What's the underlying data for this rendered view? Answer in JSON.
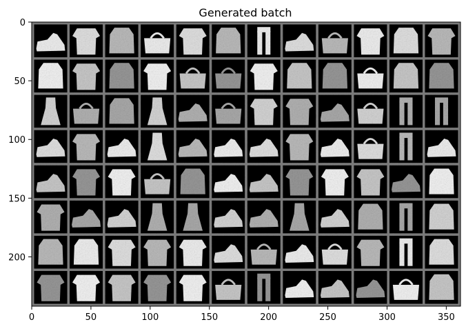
{
  "chart_data": {
    "type": "image-grid",
    "title": "Generated batch",
    "xlabel": "",
    "ylabel": "",
    "grid": false,
    "colormap": "grayscale",
    "xlim": [
      0,
      362
    ],
    "ylim": [
      242,
      0
    ],
    "rows": 8,
    "cols": 12,
    "cell_size": 28,
    "padding": 2,
    "xticks": [
      0,
      50,
      100,
      150,
      200,
      250,
      300,
      350
    ],
    "yticks": [
      0,
      50,
      100,
      150,
      200
    ],
    "tiles": [
      [
        "shoe",
        "shirt",
        "coat",
        "bag",
        "shirt",
        "coat",
        "trouser",
        "shoe",
        "bag",
        "shirt",
        "coat",
        "shirt"
      ],
      [
        "coat",
        "shirt",
        "coat",
        "shirt",
        "bag",
        "bag",
        "shirt",
        "coat",
        "coat",
        "bag",
        "coat",
        "coat"
      ],
      [
        "dress",
        "bag",
        "coat",
        "dress",
        "shoe",
        "bag",
        "shirt",
        "shirt",
        "shoe",
        "bag",
        "trouser",
        "trouser"
      ],
      [
        "shoe",
        "shirt",
        "shoe",
        "dress",
        "shoe",
        "shoe",
        "shoe",
        "shirt",
        "shoe",
        "bag",
        "trouser",
        "shoe"
      ],
      [
        "shoe",
        "shirt",
        "shirt",
        "bag",
        "coat",
        "shoe",
        "shoe",
        "shirt",
        "shirt",
        "shirt",
        "shoe",
        "coat"
      ],
      [
        "shirt",
        "shoe",
        "shoe",
        "dress",
        "dress",
        "shoe",
        "shoe",
        "dress",
        "shoe",
        "coat",
        "trouser",
        "coat"
      ],
      [
        "coat",
        "coat",
        "shirt",
        "shirt",
        "shirt",
        "shoe",
        "bag",
        "shoe",
        "bag",
        "shirt",
        "trouser",
        "coat"
      ],
      [
        "shirt",
        "shirt",
        "shirt",
        "shirt",
        "shirt",
        "bag",
        "trouser",
        "shoe",
        "shoe",
        "shoe",
        "bag",
        "coat"
      ]
    ]
  }
}
